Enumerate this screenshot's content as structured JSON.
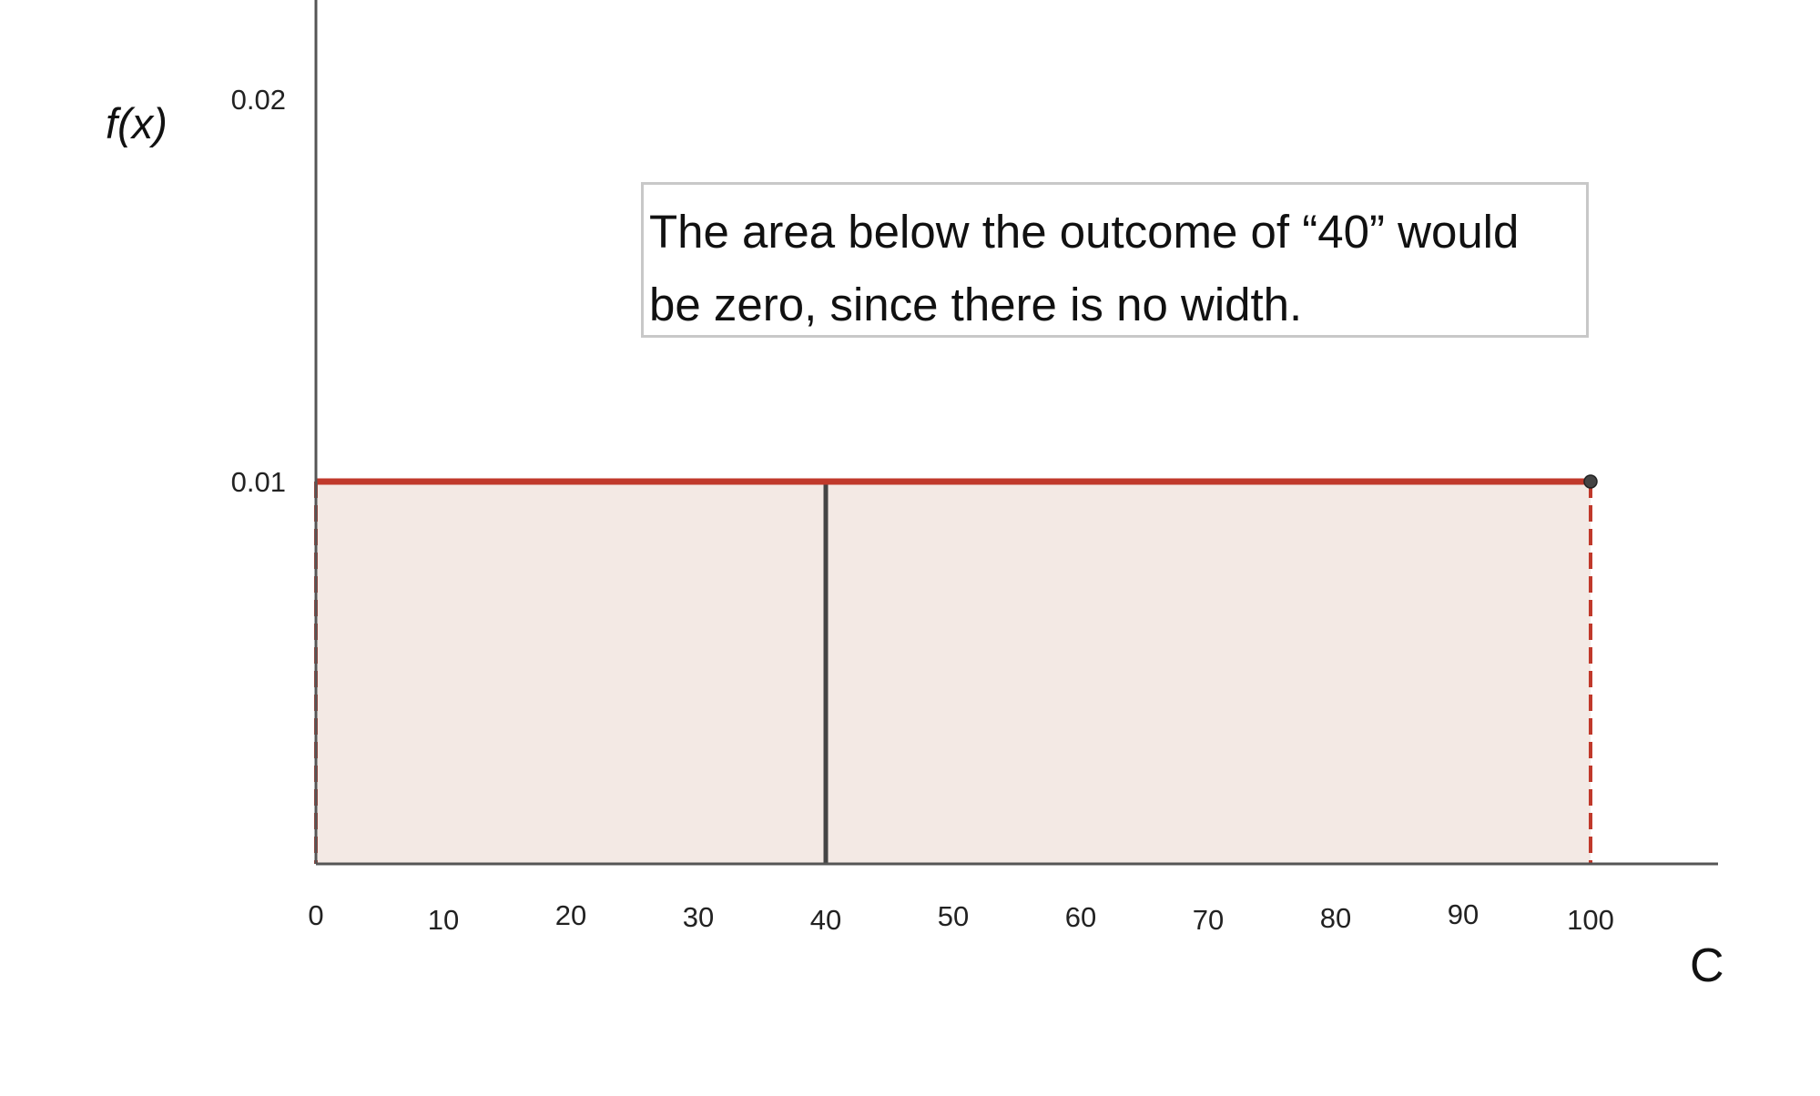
{
  "chart_data": {
    "type": "area",
    "title": "",
    "xlabel": "C",
    "ylabel": "f(x)",
    "xlim": [
      0,
      110
    ],
    "ylim": [
      0,
      0.022
    ],
    "x_ticks": [
      0,
      10,
      20,
      30,
      40,
      50,
      60,
      70,
      80,
      90,
      100
    ],
    "y_ticks": [
      0.01,
      0.02
    ],
    "x_tick_labels": [
      "0",
      "10",
      "20",
      "30",
      "40",
      "50",
      "60",
      "70",
      "80",
      "90",
      "100"
    ],
    "y_tick_labels": [
      "0.01",
      "0.02"
    ],
    "grid": false,
    "series": [
      {
        "x": [
          0,
          100
        ],
        "y": [
          0.01,
          0.01
        ],
        "color": "#c0392b",
        "fill": "#f3e9e4"
      }
    ],
    "markers": [
      {
        "x": 40,
        "y": 0.01,
        "color": "#444444"
      }
    ],
    "points": [
      {
        "x": 100,
        "y": 0.01,
        "color": "#444444"
      }
    ],
    "annotation": {
      "line1": "The area below the outcome of “40” would",
      "line2": "be zero, since there is no width."
    }
  }
}
